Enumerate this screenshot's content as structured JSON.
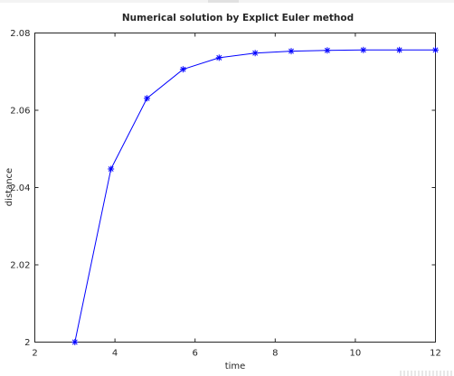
{
  "chart_data": {
    "type": "line",
    "title": "Numerical solution by Explict Euler method",
    "xlabel": "time",
    "ylabel": "distance",
    "xlim": [
      2,
      12
    ],
    "ylim": [
      2,
      2.08
    ],
    "xticks": [
      "2",
      "4",
      "6",
      "8",
      "10",
      "12"
    ],
    "yticks": [
      "2",
      "2.02",
      "2.04",
      "2.06",
      "2.08"
    ],
    "grid": false,
    "series": [
      {
        "color": "#0000ff",
        "marker": "asterisk",
        "x": [
          3.0,
          3.9,
          4.8,
          5.7,
          6.6,
          7.5,
          8.4,
          9.3,
          10.2,
          11.1,
          12.0
        ],
        "y": [
          2.0,
          2.0448,
          2.0631,
          2.0706,
          2.0736,
          2.0748,
          2.0753,
          2.0755,
          2.0756,
          2.0756,
          2.0756
        ]
      }
    ]
  }
}
